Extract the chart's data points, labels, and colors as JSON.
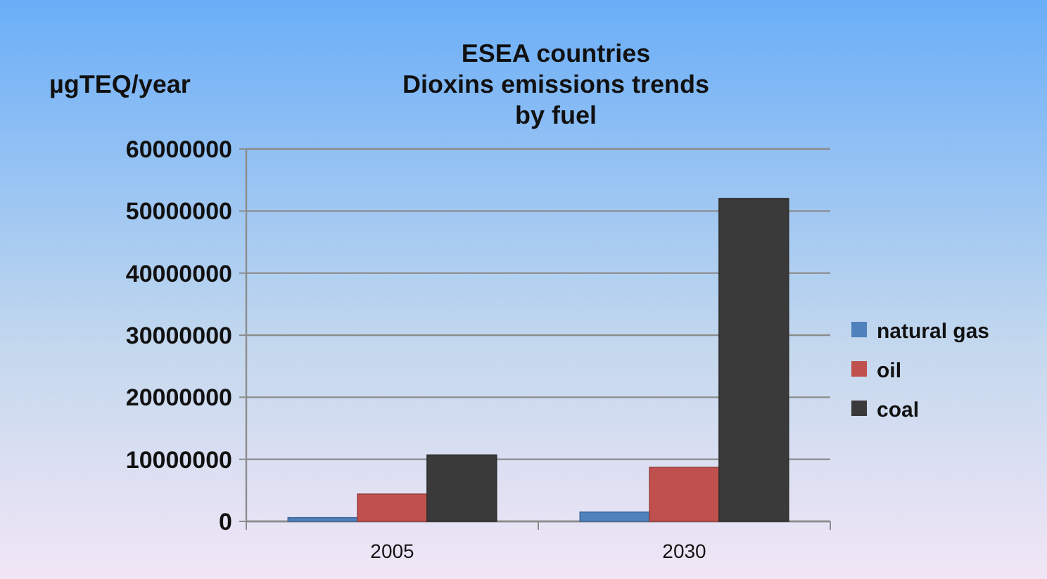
{
  "chart_data": {
    "type": "bar",
    "title": "ESEA countries\nDioxins emissions trends\nby fuel",
    "ylabel": "µgTEQ/year",
    "categories": [
      "2005",
      "2030"
    ],
    "series": [
      {
        "name": "natural gas",
        "color": "#4f81bd",
        "values": [
          600000,
          1500000
        ]
      },
      {
        "name": "oil",
        "color": "#c0504d",
        "values": [
          4400000,
          8700000
        ]
      },
      {
        "name": "coal",
        "color": "#3a3a3a",
        "values": [
          10700000,
          52000000
        ]
      }
    ],
    "ylim": [
      0,
      60000000
    ],
    "yticks": [
      0,
      10000000,
      20000000,
      30000000,
      40000000,
      50000000,
      60000000
    ],
    "grid": "y",
    "legend": "right"
  }
}
